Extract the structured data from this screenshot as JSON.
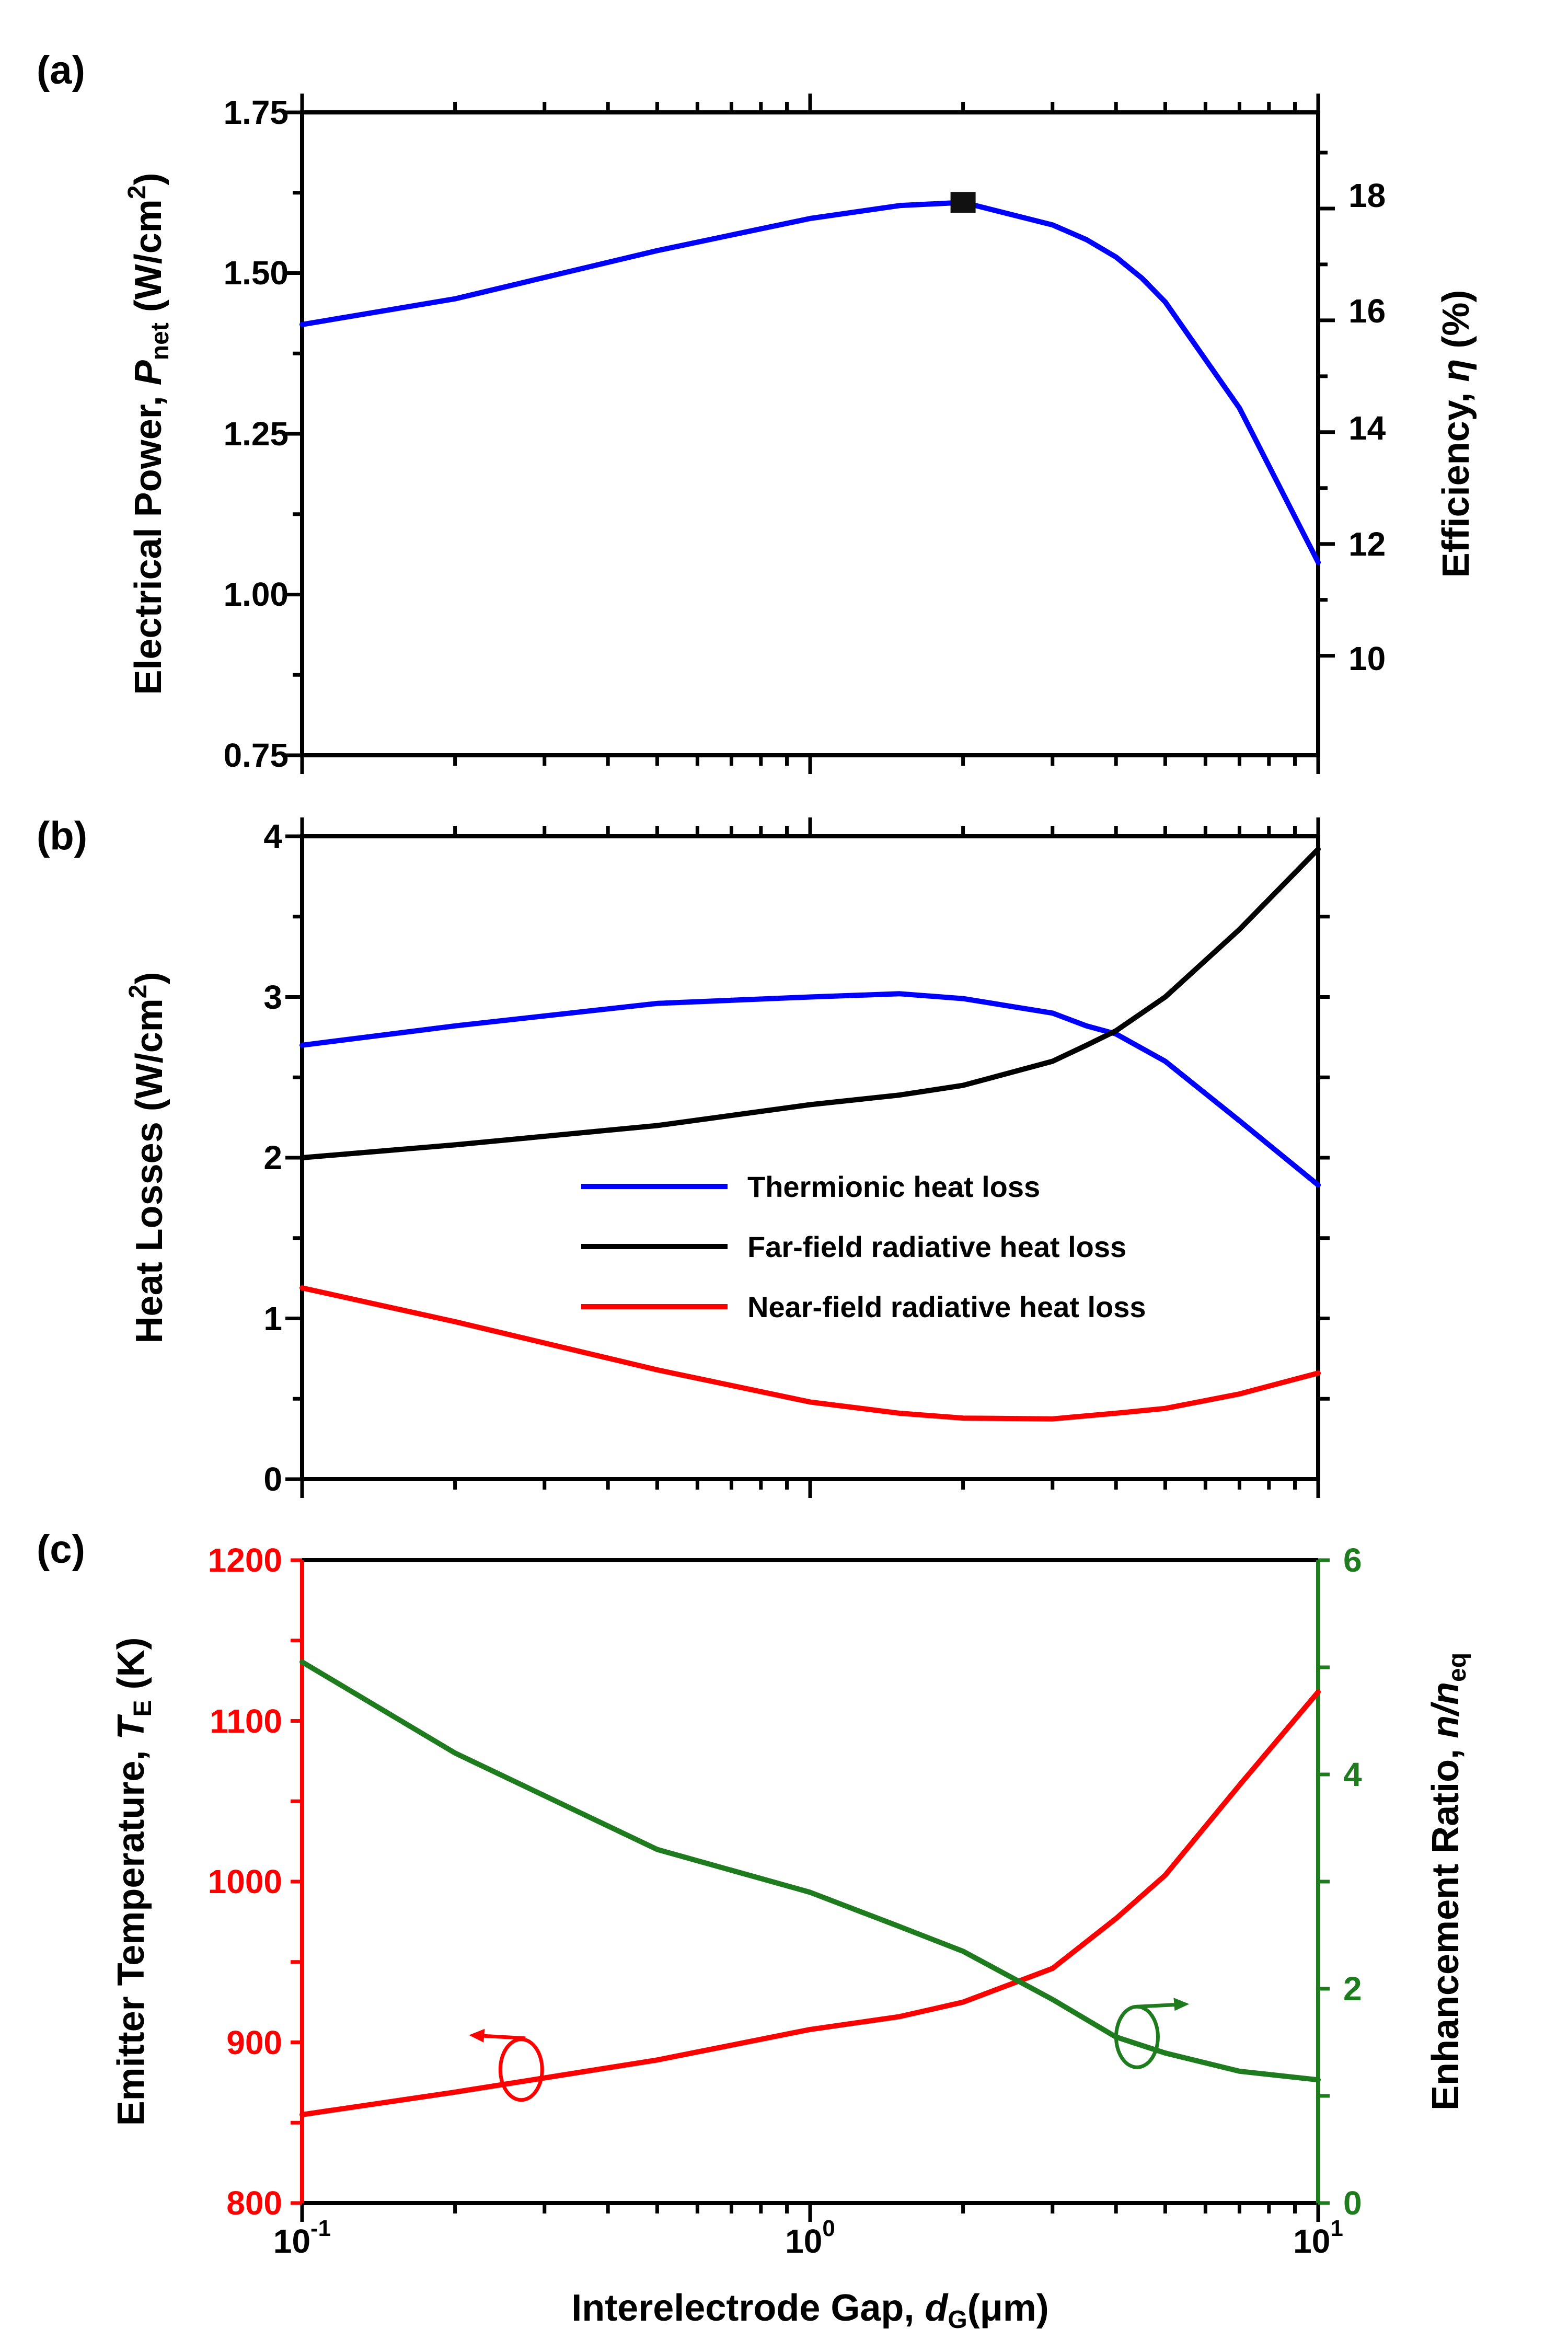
{
  "chart_data": [
    {
      "panel": "(a)",
      "type": "line",
      "x_scale": "log",
      "xlim": [
        0.1,
        10
      ],
      "ylabel_left": {
        "pre": "Electrical Power, ",
        "var": "P",
        "sub": "net",
        "post": " (W/cm",
        "sup": "2",
        "end": ")"
      },
      "ylabel_right": {
        "pre": "Efficiency, ",
        "var": "η",
        "post": " (%)"
      },
      "ylim_left": [
        0.75,
        1.75
      ],
      "yticks_left": [
        "0.75",
        "1.00",
        "1.25",
        "1.50",
        "1.75"
      ],
      "ylim_right": [
        8.22,
        19.72
      ],
      "yticks_right": [
        "10",
        "12",
        "14",
        "16",
        "18"
      ],
      "series": [
        {
          "name": "Electrical power",
          "axis": "left",
          "color": "#0000ff",
          "x": [
            0.1,
            0.2,
            0.5,
            1.0,
            1.5,
            2.0,
            3.0,
            3.5,
            4.0,
            4.5,
            5.0,
            7.0,
            10.0
          ],
          "y": [
            1.42,
            1.46,
            1.535,
            1.585,
            1.605,
            1.61,
            1.575,
            1.552,
            1.525,
            1.492,
            1.455,
            1.29,
            1.05
          ]
        }
      ],
      "marker": {
        "symbol": "square",
        "x": 2.0,
        "y": 1.61
      }
    },
    {
      "panel": "(b)",
      "type": "line",
      "x_scale": "log",
      "xlim": [
        0.1,
        10
      ],
      "ylabel": {
        "pre": "Heat Losses (W/cm",
        "sup": "2",
        "end": ")"
      },
      "ylim": [
        0,
        4
      ],
      "yticks": [
        "0",
        "1",
        "2",
        "3",
        "4"
      ],
      "legend_position": "center",
      "series": [
        {
          "name": "Thermionic heat loss",
          "color": "#0000ff",
          "x": [
            0.1,
            0.2,
            0.5,
            1.0,
            1.5,
            2.0,
            3.0,
            3.5,
            4.0,
            5.0,
            7.0,
            10.0
          ],
          "y": [
            2.7,
            2.82,
            2.96,
            3.0,
            3.02,
            2.99,
            2.9,
            2.82,
            2.77,
            2.6,
            2.23,
            1.83
          ]
        },
        {
          "name": "Far-field radiative heat loss",
          "color": "#000000",
          "x": [
            0.1,
            0.2,
            0.5,
            1.0,
            1.5,
            2.0,
            3.0,
            3.5,
            4.0,
            5.0,
            7.0,
            10.0
          ],
          "y": [
            2.0,
            2.08,
            2.2,
            2.33,
            2.39,
            2.45,
            2.6,
            2.7,
            2.79,
            3.0,
            3.42,
            3.92
          ]
        },
        {
          "name": "Near-field radiative heat loss",
          "color": "#ff0000",
          "x": [
            0.1,
            0.2,
            0.5,
            1.0,
            1.5,
            2.0,
            3.0,
            4.0,
            5.0,
            7.0,
            10.0
          ],
          "y": [
            1.19,
            0.98,
            0.68,
            0.48,
            0.41,
            0.38,
            0.375,
            0.41,
            0.44,
            0.53,
            0.66
          ]
        }
      ]
    },
    {
      "panel": "(c)",
      "type": "line",
      "x_scale": "log",
      "xlim": [
        0.1,
        10
      ],
      "xticks": [
        {
          "value": 0.1,
          "base": "10",
          "exp": "-1"
        },
        {
          "value": 1,
          "base": "10",
          "exp": "0"
        },
        {
          "value": 10,
          "base": "10",
          "exp": "1"
        }
      ],
      "xlabel": {
        "pre": "Interelectrode Gap, ",
        "var": "d",
        "sub": "G",
        "post": "(μm)"
      },
      "ylabel_left": {
        "pre": "Emitter Temperature, ",
        "var": "T",
        "sub": "E",
        "post": " (K)"
      },
      "ylabel_right": {
        "pre": "Enhancement Ratio, ",
        "var": "n/n",
        "sub": "eq"
      },
      "ylim_left": [
        800,
        1200
      ],
      "yticks_left": [
        "800",
        "900",
        "1000",
        "1100",
        "1200"
      ],
      "ylim_right": [
        0,
        6
      ],
      "yticks_right": [
        "0",
        "2",
        "4",
        "6"
      ],
      "series": [
        {
          "name": "Emitter temperature",
          "axis": "left",
          "color": "#ff0000",
          "x": [
            0.1,
            0.2,
            0.5,
            1.0,
            1.5,
            2.0,
            3.0,
            4.0,
            5.0,
            7.0,
            10.0
          ],
          "y": [
            855,
            869,
            889,
            908,
            916,
            925,
            946,
            977,
            1004,
            1060,
            1118
          ]
        },
        {
          "name": "Enhancement ratio",
          "axis": "right",
          "color": "#1e7b1e",
          "x": [
            0.1,
            0.2,
            0.5,
            1.0,
            1.5,
            2.0,
            3.0,
            4.0,
            5.0,
            7.0,
            10.0
          ],
          "y": [
            5.05,
            4.2,
            3.3,
            2.9,
            2.58,
            2.35,
            1.9,
            1.55,
            1.4,
            1.23,
            1.15
          ]
        }
      ],
      "annotations": [
        {
          "type": "axis-pointer",
          "target_axis": "left",
          "color": "#ff0000",
          "x": 0.27,
          "y_left": 883
        },
        {
          "type": "axis-pointer",
          "target_axis": "right",
          "color": "#1e7b1e",
          "x": 4.4,
          "y_right": 1.55
        }
      ]
    }
  ]
}
